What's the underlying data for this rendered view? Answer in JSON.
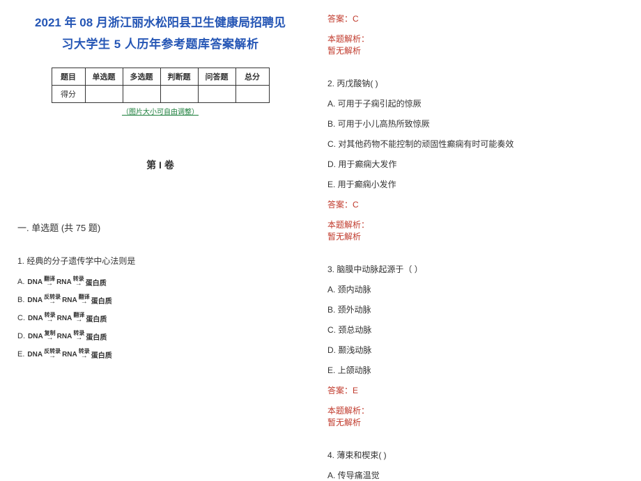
{
  "title_line1": "2021 年 08 月浙江丽水松阳县卫生健康局招聘见",
  "title_line2": "习大学生 5 人历年参考题库答案解析",
  "score_table": {
    "headers": [
      "题目",
      "单选题",
      "多选题",
      "判断题",
      "问答题",
      "总分"
    ],
    "row_label": "得分"
  },
  "table_note": "（图片大小可自由调整）",
  "volume_title": "第 I 卷",
  "section_title": "一. 单选题 (共 75 题)",
  "q1": {
    "stem": "1. 经典的分子遗传学中心法则是",
    "optA_label": "A.",
    "optB_label": "B.",
    "optC_label": "C.",
    "optD_label": "D.",
    "optE_label": "E.",
    "term_dna": "DNA",
    "term_rna": "RNA",
    "term_protein": "蛋白质",
    "lbl_translate": "翻译",
    "lbl_transcribe": "转录",
    "lbl_revtranscribe": "反转录",
    "lbl_replicate": "复制"
  },
  "right_top": {
    "answer": "答案：C",
    "expl_label": "本题解析：",
    "expl_body": "暂无解析"
  },
  "q2": {
    "stem": "2. 丙戊酸钠(   )",
    "optA": "A. 可用于子痫引起的惊厥",
    "optB": "B. 可用于小儿高热所致惊厥",
    "optC": "C. 对其他药物不能控制的顽固性癫痫有时可能奏效",
    "optD": "D. 用于癫痫大发作",
    "optE": "E. 用于癫痫小发作",
    "answer": "答案：C",
    "expl_label": "本题解析：",
    "expl_body": "暂无解析"
  },
  "q3": {
    "stem": "3. 脑膜中动脉起源于（ ）",
    "optA": "A. 颈内动脉",
    "optB": "B. 颈外动脉",
    "optC": "C. 颈总动脉",
    "optD": "D. 颞浅动脉",
    "optE": "E. 上颌动脉",
    "answer": "答案：E",
    "expl_label": "本题解析：",
    "expl_body": "暂无解析"
  },
  "q4": {
    "stem": "4. 薄束和楔束(   )",
    "optA": "A. 传导痛温觉"
  },
  "colors": {
    "title": "#2556b5",
    "accent": "#c0392b",
    "note": "#1a7d3a",
    "text": "#333333",
    "border": "#333333"
  }
}
